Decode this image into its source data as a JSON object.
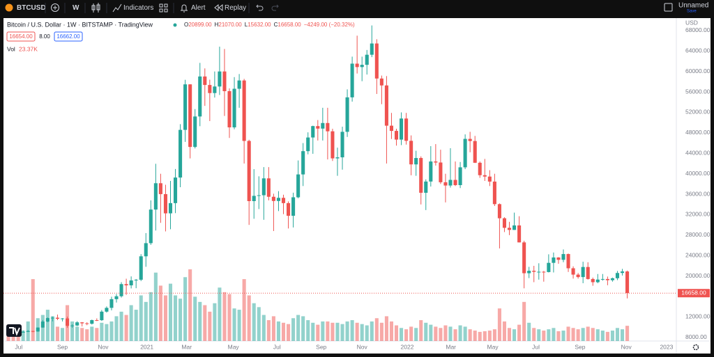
{
  "toolbar": {
    "symbol": "BTCUSD",
    "interval": "W",
    "indicators": "Indicators",
    "alert": "Alert",
    "replay": "Replay",
    "layout_name": "Unnamed",
    "save": "Save"
  },
  "legend": {
    "title": "Bitcoin / U.S. Dollar · 1W · BITSTAMP · TradingView",
    "items": [
      {
        "key": "O",
        "value": "20899.00"
      },
      {
        "key": "H",
        "value": "21070.00"
      },
      {
        "key": "L",
        "value": "15632.00"
      },
      {
        "key": "C",
        "value": "16658.00"
      }
    ],
    "change": "−4249.00 (−20.32%)",
    "bid": "16654.00",
    "spread": "8.00",
    "ask": "16662.00",
    "volume_key": "Vol",
    "volume_value": "23.37K"
  },
  "chart_data": {
    "type": "candlestick",
    "currency": "USD",
    "up_color": "#26a69a",
    "down_color": "#ef5350",
    "grid": false,
    "last_price_label": "16658.00",
    "ylim": [
      7300,
      70300
    ],
    "yticks": [
      {
        "value": 8000,
        "label": "8000.00"
      },
      {
        "value": 12000,
        "label": "12000.00"
      },
      {
        "value": 20000,
        "label": "20000.00"
      },
      {
        "value": 24000,
        "label": "24000.00"
      },
      {
        "value": 28000,
        "label": "28000.00"
      },
      {
        "value": 32000,
        "label": "32000.00"
      },
      {
        "value": 36000,
        "label": "36000.00"
      },
      {
        "value": 40000,
        "label": "40000.00"
      },
      {
        "value": 44000,
        "label": "44000.00"
      },
      {
        "value": 48000,
        "label": "48000.00"
      },
      {
        "value": 52000,
        "label": "52000.00"
      },
      {
        "value": 56000,
        "label": "56000.00"
      },
      {
        "value": 60000,
        "label": "60000.00"
      },
      {
        "value": 64000,
        "label": "64000.00"
      },
      {
        "value": 68000,
        "label": "68000.00"
      }
    ],
    "xlim": [
      -1,
      136
    ],
    "xticks": [
      {
        "value": 2.1,
        "label": "Jul"
      },
      {
        "value": 11,
        "label": "Sep"
      },
      {
        "value": 19.3,
        "label": "Nov"
      },
      {
        "value": 28.2,
        "label": "2021"
      },
      {
        "value": 36.3,
        "label": "Mar"
      },
      {
        "value": 45.8,
        "label": "May"
      },
      {
        "value": 54.7,
        "label": "Jul"
      },
      {
        "value": 63.7,
        "label": "Sep"
      },
      {
        "value": 72,
        "label": "Nov"
      },
      {
        "value": 81.2,
        "label": "2022"
      },
      {
        "value": 90.1,
        "label": "Mar"
      },
      {
        "value": 98.6,
        "label": "May"
      },
      {
        "value": 107.4,
        "label": "Jul"
      },
      {
        "value": 116.4,
        "label": "Sep"
      },
      {
        "value": 125.8,
        "label": "Nov"
      },
      {
        "value": 134,
        "label": "2023"
      }
    ],
    "volume_lim": [
      0,
      125
    ],
    "open": [
      9700,
      9380,
      9290,
      9010,
      9070,
      9250,
      9160,
      9930,
      11100,
      11780,
      11850,
      11650,
      11710,
      10260,
      10330,
      10950,
      10760,
      10670,
      11380,
      11370,
      13040,
      13780,
      15480,
      16050,
      18420,
      18180,
      19150,
      19280,
      23860,
      26430,
      33000,
      38150,
      36020,
      32260,
      34260,
      39260,
      48580,
      57480,
      45240,
      51200,
      59020,
      57360,
      55780,
      57060,
      60000,
      56150,
      49070,
      56620,
      58240,
      46420,
      34650,
      35680,
      35800,
      39100,
      35500,
      34680,
      35290,
      34260,
      31780,
      35400,
      39870,
      44420,
      47090,
      49320,
      48830,
      49920,
      48300,
      43010,
      43210,
      48200,
      54940,
      61530,
      60860,
      61300,
      63270,
      65470,
      58620,
      57270,
      49400,
      48380,
      46680,
      50800,
      46440,
      41830,
      43080,
      36280,
      38480,
      42400,
      42200,
      38340,
      37700,
      38800,
      37780,
      41260,
      46820,
      46400,
      42150,
      39720,
      39450,
      38470,
      34060,
      31300,
      29430,
      29020,
      29900,
      26580,
      20550,
      21030,
      20830,
      20840,
      20780,
      22580,
      23630,
      23170,
      24300,
      21520,
      20280,
      19800,
      21770,
      19420,
      18800,
      19310,
      19420,
      19190,
      19570,
      20600,
      20899
    ],
    "high": [
      10000,
      9590,
      9780,
      9360,
      9440,
      9290,
      9960,
      11400,
      11900,
      12080,
      12470,
      11790,
      12080,
      10580,
      11180,
      11000,
      10960,
      11480,
      11720,
      13350,
      14060,
      15960,
      16480,
      18800,
      19480,
      19930,
      19420,
      24280,
      28400,
      34800,
      41950,
      40000,
      37850,
      38600,
      40930,
      49700,
      58370,
      57510,
      52650,
      61680,
      60600,
      58400,
      60000,
      64850,
      64400,
      56700,
      58900,
      59500,
      58550,
      46650,
      40900,
      39500,
      41300,
      41300,
      36100,
      36600,
      35900,
      34600,
      36300,
      42600,
      46000,
      48100,
      49400,
      50500,
      52900,
      52900,
      48800,
      45100,
      49200,
      56500,
      62900,
      67000,
      62900,
      64200,
      69000,
      66300,
      59200,
      59100,
      51900,
      48800,
      52000,
      51900,
      47500,
      44500,
      43400,
      38900,
      45400,
      45800,
      44700,
      40000,
      45000,
      42400,
      42300,
      47700,
      48200,
      47400,
      42400,
      42900,
      40700,
      40000,
      34200,
      31500,
      30600,
      32400,
      31700,
      26900,
      21800,
      22000,
      22500,
      21000,
      24250,
      24600,
      23700,
      25200,
      24400,
      21900,
      20600,
      22800,
      22700,
      19700,
      20400,
      20400,
      19900,
      19700,
      21000,
      21400,
      21070
    ],
    "low": [
      9290,
      8930,
      8840,
      8920,
      9050,
      9020,
      9100,
      9900,
      10960,
      11140,
      11380,
      11120,
      9880,
      9880,
      10220,
      10140,
      10390,
      10520,
      11200,
      11220,
      12850,
      13290,
      14820,
      15790,
      16330,
      17580,
      17620,
      19010,
      21810,
      26100,
      28900,
      30400,
      28730,
      29150,
      32300,
      37370,
      46230,
      43000,
      44950,
      49300,
      53270,
      50300,
      54900,
      55400,
      51300,
      47000,
      48700,
      52900,
      42000,
      30000,
      31200,
      33100,
      31000,
      34800,
      28800,
      32700,
      32100,
      29300,
      29500,
      35200,
      37600,
      43800,
      43900,
      46500,
      46500,
      42800,
      42500,
      39600,
      40800,
      47200,
      54100,
      59600,
      58100,
      59400,
      62800,
      55600,
      53600,
      42000,
      46800,
      45500,
      45600,
      45700,
      39700,
      39600,
      34000,
      32900,
      37500,
      41600,
      38000,
      34400,
      37300,
      37600,
      37200,
      40900,
      44200,
      42100,
      39200,
      38600,
      37600,
      33700,
      25400,
      28600,
      28000,
      29000,
      26560,
      17600,
      19600,
      18800,
      19300,
      18900,
      20700,
      20700,
      22400,
      22700,
      20800,
      19500,
      19500,
      18600,
      19300,
      18100,
      18600,
      19100,
      18200,
      18900,
      19200,
      20100,
      15632
    ],
    "close": [
      9380,
      9290,
      9010,
      9070,
      9250,
      9160,
      9930,
      11100,
      11780,
      11850,
      11650,
      11710,
      10260,
      10330,
      10950,
      10760,
      10670,
      11380,
      11370,
      13040,
      13780,
      15480,
      16050,
      18420,
      18180,
      19150,
      19280,
      23860,
      26430,
      33000,
      38150,
      36020,
      32260,
      34260,
      39260,
      48580,
      57480,
      45240,
      51200,
      59020,
      57360,
      55780,
      57060,
      60000,
      56150,
      49070,
      56620,
      58240,
      46420,
      34650,
      35680,
      35800,
      39100,
      35500,
      34680,
      35290,
      34260,
      31780,
      35400,
      39870,
      44420,
      47090,
      49320,
      48830,
      49920,
      48300,
      43010,
      43210,
      48200,
      54940,
      61530,
      60860,
      61300,
      63270,
      65470,
      58620,
      57270,
      49400,
      48380,
      46680,
      50800,
      46440,
      41830,
      43080,
      36280,
      38480,
      42400,
      42200,
      38340,
      37700,
      38800,
      37780,
      41260,
      46820,
      46400,
      42150,
      39720,
      39450,
      38470,
      34060,
      31300,
      29430,
      29020,
      29900,
      26580,
      20550,
      21030,
      20830,
      20840,
      20780,
      22580,
      23630,
      23170,
      24300,
      21520,
      20280,
      19800,
      21770,
      19420,
      18800,
      19310,
      19420,
      19190,
      19570,
      20600,
      20899,
      16658
    ],
    "volume": [
      25,
      18,
      20,
      16,
      30,
      95,
      35,
      40,
      48,
      38,
      22,
      20,
      55,
      30,
      22,
      20,
      18,
      22,
      20,
      28,
      26,
      30,
      38,
      45,
      40,
      55,
      48,
      70,
      60,
      75,
      105,
      85,
      70,
      88,
      70,
      65,
      98,
      110,
      68,
      60,
      55,
      45,
      58,
      82,
      75,
      72,
      50,
      48,
      95,
      70,
      58,
      52,
      40,
      32,
      38,
      30,
      28,
      26,
      35,
      40,
      38,
      32,
      28,
      25,
      30,
      30,
      28,
      28,
      26,
      30,
      32,
      28,
      26,
      24,
      30,
      35,
      28,
      38,
      30,
      24,
      20,
      18,
      22,
      20,
      32,
      28,
      25,
      22,
      20,
      24,
      22,
      18,
      24,
      22,
      18,
      16,
      14,
      15,
      16,
      18,
      50,
      30,
      20,
      18,
      25,
      60,
      28,
      20,
      18,
      16,
      18,
      20,
      15,
      16,
      22,
      20,
      18,
      20,
      22,
      20,
      18,
      16,
      14,
      16,
      20,
      18,
      23.37
    ]
  }
}
